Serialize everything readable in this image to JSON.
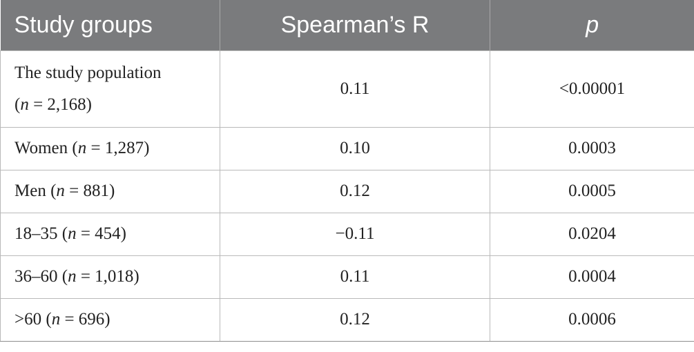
{
  "table": {
    "headers": [
      "Study groups",
      "Spearman’s R",
      "p"
    ],
    "rows": [
      {
        "group_line1": "The study population",
        "group_open": "(",
        "n_symbol": "n",
        "n_eq": " = 2,168)",
        "r": "0.11",
        "p": "<0.00001"
      },
      {
        "group_prefix": "Women (",
        "n_symbol": "n",
        "n_eq": " = 1,287)",
        "r": "0.10",
        "p": "0.0003"
      },
      {
        "group_prefix": "Men (",
        "n_symbol": "n",
        "n_eq": " = 881)",
        "r": "0.12",
        "p": "0.0005"
      },
      {
        "group_prefix": "18–35 (",
        "n_symbol": "n",
        "n_eq": " = 454)",
        "r": "−0.11",
        "p": "0.0204"
      },
      {
        "group_prefix": "36–60 (",
        "n_symbol": "n",
        "n_eq": " = 1,018)",
        "r": "0.11",
        "p": "0.0004"
      },
      {
        "group_prefix": ">60 (",
        "n_symbol": "n",
        "n_eq": " = 696)",
        "r": "0.12",
        "p": "0.0006"
      }
    ]
  }
}
